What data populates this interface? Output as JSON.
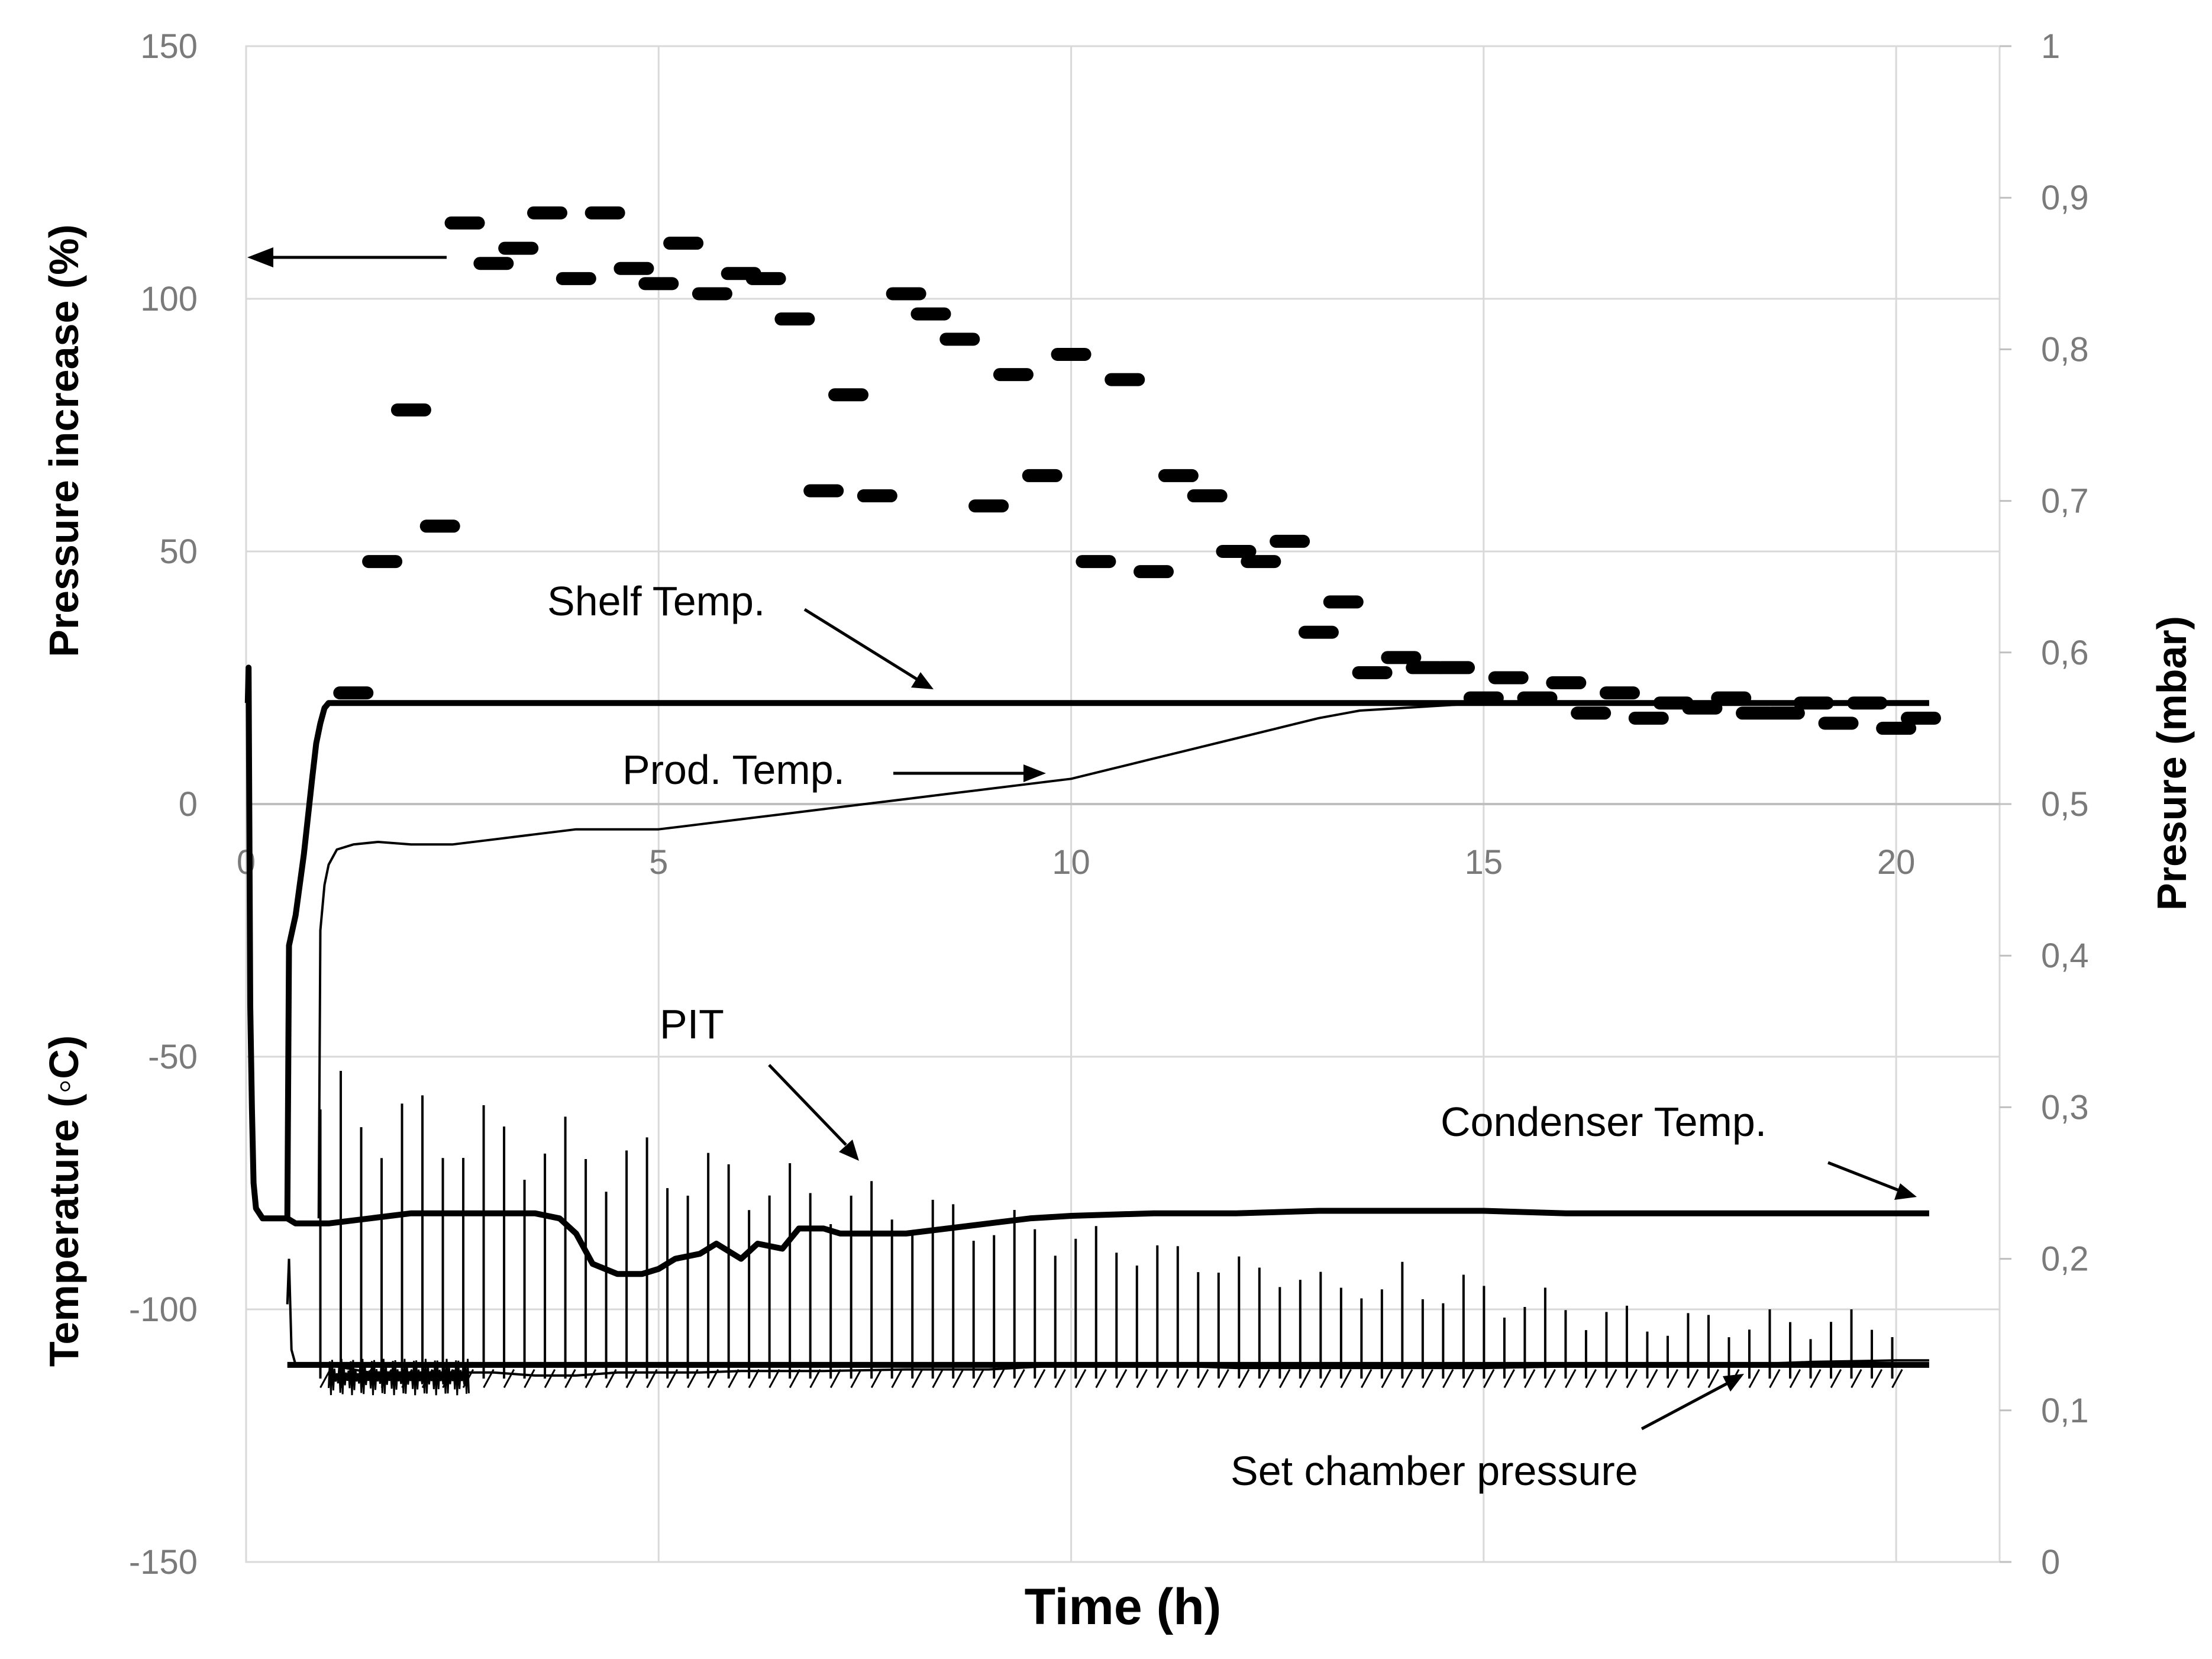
{
  "chart_data": {
    "type": "scatter",
    "title": "",
    "xlabel": "Time (h)",
    "ylabel_left_top": "Pressure increase (%)",
    "ylabel_left_bottom": "Temperature (◦C)",
    "ylabel_right": "Presure (mbar)",
    "xlim": [
      0,
      20.5
    ],
    "ylim": [
      -150,
      150
    ],
    "y2lim": [
      0,
      1
    ],
    "x_ticks": [
      "0",
      "5",
      "10",
      "15",
      "20"
    ],
    "y_ticks": [
      "150",
      "100",
      "50",
      "0",
      "-50",
      "-100",
      "-150"
    ],
    "y2_ticks": [
      "1",
      "0,9",
      "0,8",
      "0,7",
      "0,6",
      "0,5",
      "0,4",
      "0,3",
      "0,2",
      "0,1",
      "0"
    ],
    "grid": true,
    "annotations": {
      "shelf": "Shelf Temp.",
      "prod": "Prod. Temp.",
      "pit": "PIT",
      "condenser": "Condenser Temp.",
      "setp": "Set chamber pressure"
    },
    "series": [
      {
        "name": "Pressure increase",
        "axis": "left",
        "style": "dash-markers",
        "x": [
          1.3,
          1.65,
          2.0,
          2.35,
          2.65,
          3.0,
          3.3,
          3.65,
          4.0,
          4.35,
          4.7,
          5.0,
          5.3,
          5.65,
          6.0,
          6.3,
          6.65,
          7.0,
          7.3,
          7.65,
          8.0,
          8.3,
          8.65,
          9.0,
          9.3,
          9.65,
          10.0,
          10.3,
          10.65,
          11.0,
          11.3,
          11.65,
          12.0,
          12.3,
          12.65,
          13.0,
          13.3,
          13.65,
          14.0,
          14.3,
          14.65,
          15.0,
          15.3,
          15.65,
          16.0,
          16.3,
          16.65,
          17.0,
          17.3,
          17.65,
          18.0,
          18.3,
          18.65,
          19.0,
          19.3,
          19.65,
          20.0,
          20.3
        ],
        "y": [
          22,
          48,
          78,
          55,
          115,
          107,
          110,
          117,
          104,
          117,
          106,
          103,
          111,
          101,
          105,
          104,
          96,
          62,
          81,
          61,
          101,
          97,
          92,
          59,
          85,
          65,
          89,
          48,
          84,
          46,
          65,
          61,
          50,
          48,
          52,
          34,
          40,
          26,
          29,
          27,
          27,
          21,
          25,
          21,
          24,
          18,
          22,
          17,
          20,
          19,
          21,
          18,
          18,
          20,
          16,
          20,
          15,
          17
        ]
      },
      {
        "name": "Shelf Temp.",
        "axis": "left",
        "style": "thick-line",
        "x": [
          0,
          0.02,
          0.03,
          0.05,
          0.07,
          0.09,
          0.12,
          0.2,
          0.5,
          0.52,
          0.6,
          0.7,
          0.8,
          0.85,
          0.9,
          0.95,
          1.0,
          20.4
        ],
        "y": [
          20,
          20,
          27,
          -40,
          -60,
          -75,
          -80,
          -82,
          -82,
          -28,
          -22,
          -10,
          5,
          12,
          16,
          19,
          20,
          20
        ]
      },
      {
        "name": "Prod. Temp.",
        "axis": "left",
        "style": "thin-line",
        "x": [
          0.88,
          0.9,
          0.95,
          1.0,
          1.1,
          1.3,
          1.6,
          2.0,
          2.5,
          3.0,
          3.5,
          4.0,
          4.5,
          5.0,
          5.5,
          6.0,
          6.5,
          7.0,
          7.5,
          8.0,
          8.5,
          9.0,
          9.5,
          10.0,
          10.5,
          11.0,
          11.5,
          12.0,
          12.5,
          13.0,
          13.5,
          14.0,
          14.5,
          15.0,
          16.0,
          17.0,
          18.0,
          19.0,
          20.0,
          20.4
        ],
        "y": [
          -82,
          -25,
          -16,
          -12,
          -9,
          -8,
          -7.5,
          -8,
          -8,
          -7,
          -6,
          -5,
          -5,
          -5,
          -4,
          -3,
          -2,
          -1,
          0,
          1,
          2,
          3,
          4,
          5,
          7,
          9,
          11,
          13,
          15,
          17,
          18.5,
          19,
          19.5,
          20,
          20,
          20,
          20,
          20,
          20,
          20
        ]
      },
      {
        "name": "Condenser Temp.",
        "axis": "left",
        "style": "thick-line",
        "x": [
          0.5,
          0.6,
          0.8,
          1.0,
          1.5,
          2.0,
          3.0,
          3.5,
          3.8,
          4.0,
          4.2,
          4.5,
          4.8,
          5.0,
          5.2,
          5.5,
          5.7,
          6.0,
          6.2,
          6.5,
          6.7,
          7.0,
          7.2,
          7.5,
          7.8,
          8.0,
          8.5,
          9.0,
          9.5,
          10.0,
          11.0,
          12.0,
          13.0,
          14.0,
          15.0,
          16.0,
          17.0,
          18.0,
          19.0,
          20.4
        ],
        "y": [
          -82,
          -83,
          -83,
          -83,
          -82,
          -81,
          -81,
          -81,
          -82,
          -85,
          -91,
          -93,
          -93,
          -92,
          -90,
          -89,
          -87,
          -90,
          -87,
          -88,
          -84,
          -84,
          -85,
          -85,
          -85,
          -85,
          -84,
          -83,
          -82,
          -81.5,
          -81,
          -81,
          -80.5,
          -80.5,
          -80.5,
          -81,
          -81,
          -81,
          -81,
          -81
        ]
      },
      {
        "name": "PIT (chamber pressure)",
        "axis": "right",
        "style": "spiky-thin-line",
        "x": [
          0.5,
          0.52,
          0.55,
          0.6,
          0.8,
          1.0,
          1.5,
          2.0,
          2.5,
          3.0,
          3.5,
          4.0,
          4.5,
          5.0,
          5.5,
          6.0,
          7.0,
          8.0,
          9.0,
          10.0,
          11.0,
          12.0,
          13.0,
          14.0,
          15.0,
          16.0,
          17.0,
          18.0,
          19.0,
          20.0,
          20.4
        ],
        "y": [
          0.17,
          0.2,
          0.14,
          0.13,
          0.13,
          0.13,
          0.125,
          0.125,
          0.125,
          0.125,
          0.123,
          0.123,
          0.125,
          0.125,
          0.125,
          0.126,
          0.126,
          0.127,
          0.127,
          0.13,
          0.13,
          0.128,
          0.128,
          0.128,
          0.128,
          0.129,
          0.13,
          0.13,
          0.132,
          0.133,
          0.133
        ]
      },
      {
        "name": "Set chamber pressure",
        "axis": "right",
        "style": "thick-line",
        "x": [
          0.5,
          20.4
        ],
        "y": [
          0.13,
          0.13
        ]
      }
    ]
  }
}
